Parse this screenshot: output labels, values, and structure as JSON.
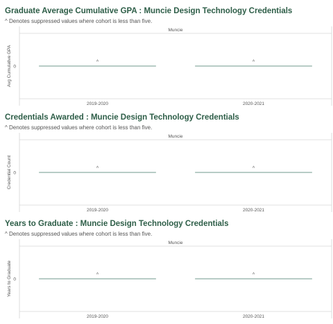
{
  "colors": {
    "title": "#2e5e48",
    "line": "#6f9a8d",
    "grid": "#d6d6d6",
    "text": "#555555"
  },
  "panels": [
    {
      "title": "Graduate Average Cumulative GPA : Muncie Design Technology Credentials",
      "note": "^ Denotes suppressed values where cohort is less than five."
    },
    {
      "title": "Credentials Awarded : Muncie Design Technology Credentials",
      "note": "^ Denotes suppressed values where cohort is less than five."
    },
    {
      "title": "Years to Graduate : Muncie Design Technology Credentials",
      "note": "^ Denotes suppressed values where cohort is less than five."
    }
  ],
  "chart_data": [
    {
      "type": "bar",
      "title": "Graduate Average Cumulative GPA : Muncie Design Technology Credentials",
      "facet": "Muncie",
      "ylabel": "Avg Cumulative GPA",
      "yticks": [
        "0"
      ],
      "categories": [
        "2019-2020",
        "2020-2021"
      ],
      "values": [
        0,
        0
      ],
      "labels": [
        "^",
        "^"
      ],
      "grid": true
    },
    {
      "type": "bar",
      "title": "Credentials Awarded : Muncie Design Technology Credentials",
      "facet": "Muncie",
      "ylabel": "Credential Count",
      "yticks": [
        "0"
      ],
      "categories": [
        "2019-2020",
        "2020-2021"
      ],
      "values": [
        0,
        0
      ],
      "labels": [
        "^",
        "^"
      ],
      "grid": true
    },
    {
      "type": "bar",
      "title": "Years to Graduate : Muncie Design Technology Credentials",
      "facet": "Muncie",
      "ylabel": "Years to Graduate",
      "yticks": [
        "0"
      ],
      "categories": [
        "2019-2020",
        "2020-2021"
      ],
      "values": [
        0,
        0
      ],
      "labels": [
        "^",
        "^"
      ],
      "grid": true
    }
  ]
}
